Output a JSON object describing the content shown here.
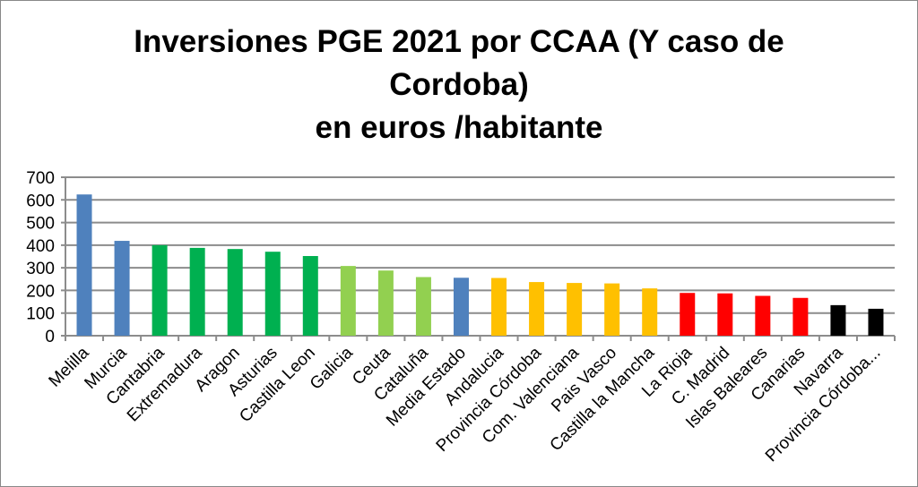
{
  "chart_data": {
    "type": "bar",
    "title_lines": [
      "Inversiones PGE 2021 por CCAA (Y caso de",
      "Cordoba)",
      "en euros /habitante"
    ],
    "xlabel": "",
    "ylabel": "",
    "ylim": [
      0,
      700
    ],
    "yticks": [
      0,
      100,
      200,
      300,
      400,
      500,
      600,
      700
    ],
    "grid": true,
    "categories": [
      "Melilla",
      "Murcia",
      "Cantabria",
      "Extremadura",
      "Aragon",
      "Asturias",
      "Castilla Leon",
      "Galicia",
      "Ceuta",
      "Cataluña",
      "Media Estado",
      "Andalucia",
      "Provincia Córdoba",
      "Com. Valenciana",
      "Pais Vasco",
      "Castilla la Mancha",
      "La Rioja",
      "C. Madrid",
      "Islas Baleares",
      "Canarias",
      "Navarra",
      "Provincia Córdoba..."
    ],
    "values": [
      624,
      419,
      400,
      388,
      383,
      371,
      352,
      308,
      288,
      259,
      256,
      255,
      237,
      233,
      231,
      209,
      189,
      187,
      176,
      167,
      135,
      119
    ],
    "colors": [
      "#4f81bd",
      "#4f81bd",
      "#00b050",
      "#00b050",
      "#00b050",
      "#00b050",
      "#00b050",
      "#92d050",
      "#92d050",
      "#92d050",
      "#4f81bd",
      "#ffc000",
      "#ffc000",
      "#ffc000",
      "#ffc000",
      "#ffc000",
      "#ff0000",
      "#ff0000",
      "#ff0000",
      "#ff0000",
      "#000000",
      "#000000"
    ]
  }
}
